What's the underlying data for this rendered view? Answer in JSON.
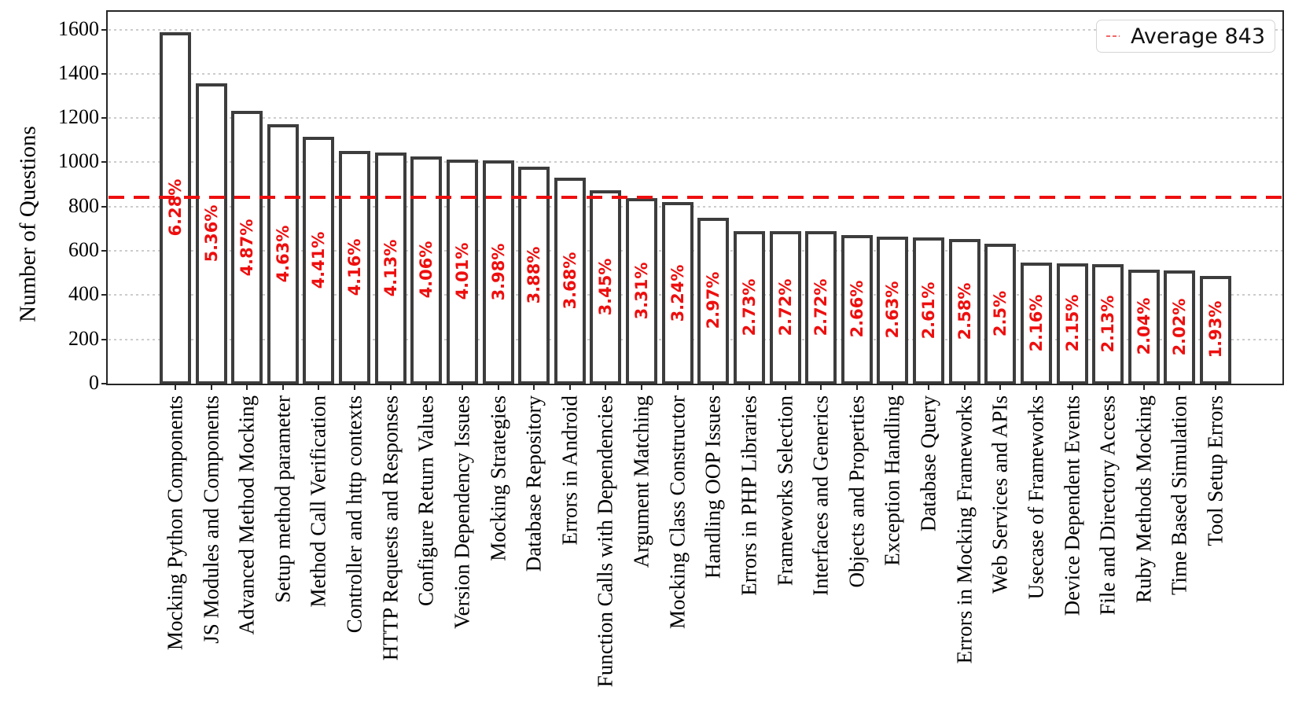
{
  "chart_data": {
    "type": "bar",
    "title": "",
    "xlabel": "",
    "ylabel": "Number of Questions",
    "categories": [
      "Mocking Python Components",
      "JS Modules and Components",
      "Advanced Method Mocking",
      "Setup method parameter",
      "Method Call Verification",
      "Controller and http contexts",
      "HTTP Requests and Responses",
      "Configure Return Values",
      "Version Dependency Issues",
      "Mocking Strategies",
      "Database Repository",
      "Errors in Android",
      "Function Calls with Dependencies",
      "Argument Matching",
      "Mocking Class Constructor",
      "Handling OOP Issues",
      "Errors in PHP Libraries",
      "Frameworks Selection",
      "Interfaces and Generics",
      "Objects and Properties",
      "Exception Handling",
      "Database Query",
      "Errors in Mocking Frameworks",
      "Web Services and APIs",
      "Usecase of Frameworks",
      "Device Dependent Events",
      "File and Directory Access",
      "Ruby Methods Mocking",
      "Time Based Simulation",
      "Tool Setup Errors"
    ],
    "values": [
      1588,
      1356,
      1232,
      1171,
      1115,
      1052,
      1045,
      1027,
      1014,
      1007,
      981,
      931,
      873,
      837,
      819,
      751,
      690,
      688,
      688,
      673,
      665,
      660,
      652,
      632,
      546,
      544,
      539,
      516,
      511,
      488
    ],
    "bar_labels": [
      "6.28%",
      "5.36%",
      "4.87%",
      "4.63%",
      "4.41%",
      "4.16%",
      "4.13%",
      "4.06%",
      "4.01%",
      "3.98%",
      "3.88%",
      "3.68%",
      "3.45%",
      "3.31%",
      "3.24%",
      "2.97%",
      "2.73%",
      "2.72%",
      "2.72%",
      "2.66%",
      "2.63%",
      "2.61%",
      "2.58%",
      "2.5%",
      "2.16%",
      "2.15%",
      "2.13%",
      "2.04%",
      "2.02%",
      "1.93%"
    ],
    "average": 843,
    "legend_label": "Average 843",
    "ylim": [
      0,
      1680
    ],
    "yticks": [
      0,
      200,
      400,
      600,
      800,
      1000,
      1200,
      1400,
      1600
    ],
    "grid": true,
    "legend_position": "upper-right",
    "colors": {
      "bar_fill": "#ffffff",
      "bar_edge": "#3d3d3d",
      "accent_red": "#ee0e0e",
      "grid": "#cccccc",
      "axis": "#262626",
      "text": "#000000"
    }
  }
}
